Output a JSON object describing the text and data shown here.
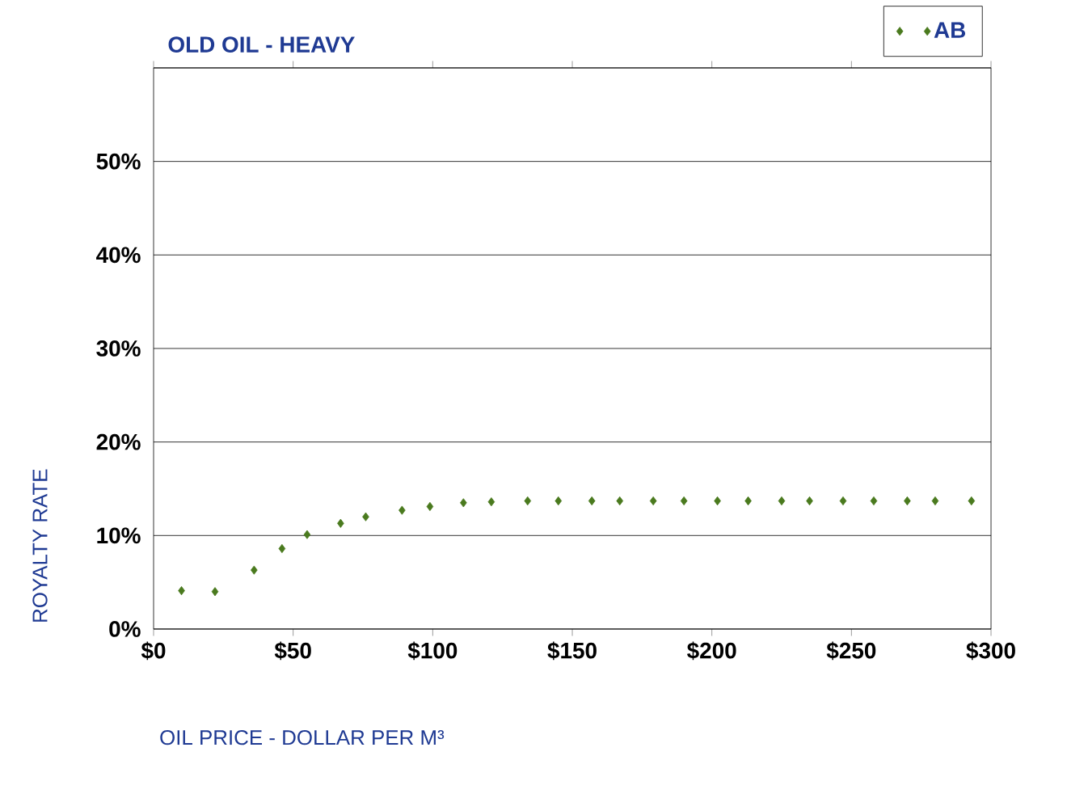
{
  "chart_data": {
    "type": "scatter",
    "title": "OLD OIL - HEAVY",
    "xlabel": "OIL PRICE - DOLLAR PER M³",
    "ylabel": "ROYALTY RATE",
    "xlim": [
      0,
      300
    ],
    "ylim": [
      0,
      60
    ],
    "xticks": [
      {
        "value": 0,
        "label": "$0"
      },
      {
        "value": 50,
        "label": "$50"
      },
      {
        "value": 100,
        "label": "$100"
      },
      {
        "value": 150,
        "label": "$150"
      },
      {
        "value": 200,
        "label": "$200"
      },
      {
        "value": 250,
        "label": "$250"
      },
      {
        "value": 300,
        "label": "$300"
      }
    ],
    "yticks": [
      {
        "value": 0,
        "label": "0%"
      },
      {
        "value": 10,
        "label": "10%"
      },
      {
        "value": 20,
        "label": "20%"
      },
      {
        "value": 30,
        "label": "30%"
      },
      {
        "value": 40,
        "label": "40%"
      },
      {
        "value": 50,
        "label": "50%"
      },
      {
        "value": 60,
        "label": null
      }
    ],
    "grid": "y",
    "legend": "top right",
    "marker": "diamond",
    "series": [
      {
        "name": "AB",
        "color": "#4a7a1e",
        "x": [
          10,
          22,
          36,
          46,
          55,
          67,
          76,
          89,
          99,
          111,
          121,
          134,
          145,
          157,
          167,
          179,
          190,
          202,
          213,
          225,
          235,
          247,
          258,
          270,
          280,
          293
        ],
        "values": [
          4.1,
          4.0,
          6.3,
          8.6,
          10.1,
          11.3,
          12.0,
          12.7,
          13.1,
          13.5,
          13.6,
          13.7,
          13.7,
          13.7,
          13.7,
          13.7,
          13.7,
          13.7,
          13.7,
          13.7,
          13.7,
          13.7,
          13.7,
          13.7,
          13.7,
          13.7
        ]
      }
    ]
  }
}
